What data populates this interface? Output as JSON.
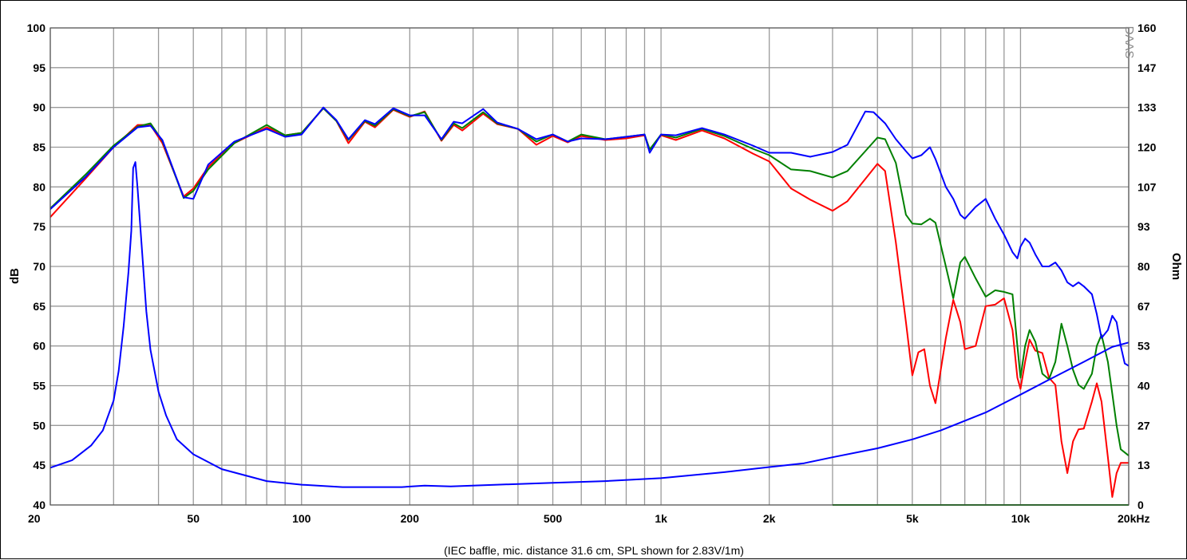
{
  "chart_data": {
    "type": "line",
    "title": "",
    "caption": "(IEC baffle, mic. distance 31.6 cm, SPL shown for 2.83V/1m)",
    "watermark": "DAAS",
    "xscale": "log",
    "xlim": [
      20,
      20000
    ],
    "ylim": [
      40,
      100
    ],
    "y2lim": [
      0,
      160
    ],
    "ylabel": "dB",
    "y2label": "Ohm",
    "grid": true,
    "xticks": [
      {
        "v": 20,
        "label": "20"
      },
      {
        "v": 50,
        "label": "50"
      },
      {
        "v": 100,
        "label": "100"
      },
      {
        "v": 200,
        "label": "200"
      },
      {
        "v": 500,
        "label": "500"
      },
      {
        "v": 1000,
        "label": "1k"
      },
      {
        "v": 2000,
        "label": "2k"
      },
      {
        "v": 5000,
        "label": "5k"
      },
      {
        "v": 10000,
        "label": "10k"
      },
      {
        "v": 20000,
        "label": "20kHz"
      }
    ],
    "yticks": [
      "40",
      "45",
      "50",
      "55",
      "60",
      "65",
      "70",
      "75",
      "80",
      "85",
      "90",
      "95",
      "100"
    ],
    "y2ticks": [
      "0",
      "13",
      "27",
      "40",
      "53",
      "67",
      "80",
      "93",
      "107",
      "120",
      "133",
      "147",
      "160"
    ],
    "series": [
      {
        "id": "spl-red",
        "color": "#ff0000",
        "axis": "left",
        "points": [
          [
            20,
            76.2
          ],
          [
            25,
            81
          ],
          [
            30,
            85
          ],
          [
            35,
            87.8
          ],
          [
            38,
            87.8
          ],
          [
            41,
            85.5
          ],
          [
            47,
            78.8
          ],
          [
            50,
            79.8
          ],
          [
            55,
            82.5
          ],
          [
            65,
            85.5
          ],
          [
            80,
            87.5
          ],
          [
            90,
            86.5
          ],
          [
            100,
            86.8
          ],
          [
            115,
            89.9
          ],
          [
            125,
            88.3
          ],
          [
            135,
            85.5
          ],
          [
            150,
            88.2
          ],
          [
            160,
            87.5
          ],
          [
            180,
            89.7
          ],
          [
            200,
            88.8
          ],
          [
            220,
            89.5
          ],
          [
            245,
            85.8
          ],
          [
            265,
            87.8
          ],
          [
            280,
            87.1
          ],
          [
            320,
            89.2
          ],
          [
            350,
            87.9
          ],
          [
            400,
            87.3
          ],
          [
            450,
            85.3
          ],
          [
            500,
            86.4
          ],
          [
            550,
            85.6
          ],
          [
            600,
            86.4
          ],
          [
            700,
            85.9
          ],
          [
            800,
            86.1
          ],
          [
            900,
            86.5
          ],
          [
            930,
            84.7
          ],
          [
            1000,
            86.5
          ],
          [
            1100,
            85.9
          ],
          [
            1300,
            87.1
          ],
          [
            1500,
            86.1
          ],
          [
            1800,
            84.2
          ],
          [
            2000,
            83.2
          ],
          [
            2300,
            79.8
          ],
          [
            2600,
            78.4
          ],
          [
            3000,
            77
          ],
          [
            3300,
            78.2
          ],
          [
            3700,
            81
          ],
          [
            4000,
            82.9
          ],
          [
            4200,
            82
          ],
          [
            4500,
            73
          ],
          [
            4800,
            63
          ],
          [
            5000,
            56.3
          ],
          [
            5200,
            59.2
          ],
          [
            5400,
            59.6
          ],
          [
            5600,
            55
          ],
          [
            5800,
            52.8
          ],
          [
            6200,
            61
          ],
          [
            6500,
            65.8
          ],
          [
            6800,
            63
          ],
          [
            7000,
            59.6
          ],
          [
            7500,
            60
          ],
          [
            8000,
            65
          ],
          [
            8500,
            65.2
          ],
          [
            9000,
            66
          ],
          [
            9500,
            62
          ],
          [
            9800,
            56
          ],
          [
            10000,
            54.6
          ],
          [
            10300,
            58
          ],
          [
            10600,
            60.8
          ],
          [
            11000,
            59.4
          ],
          [
            11500,
            59.1
          ],
          [
            12000,
            56
          ],
          [
            12500,
            55.1
          ],
          [
            13000,
            48
          ],
          [
            13500,
            44
          ],
          [
            14000,
            48
          ],
          [
            14500,
            49.5
          ],
          [
            15000,
            49.6
          ],
          [
            15800,
            53
          ],
          [
            16300,
            55.3
          ],
          [
            16800,
            53
          ],
          [
            17500,
            46
          ],
          [
            18000,
            41
          ],
          [
            18500,
            44
          ],
          [
            19000,
            45.3
          ],
          [
            20000,
            45.3
          ]
        ]
      },
      {
        "id": "spl-green",
        "color": "#008000",
        "axis": "left",
        "points": [
          [
            20,
            77.3
          ],
          [
            25,
            81.5
          ],
          [
            30,
            85.2
          ],
          [
            35,
            87.6
          ],
          [
            38,
            88
          ],
          [
            41,
            85.8
          ],
          [
            47,
            78.6
          ],
          [
            50,
            79.5
          ],
          [
            55,
            82.2
          ],
          [
            65,
            85.5
          ],
          [
            80,
            87.8
          ],
          [
            90,
            86.5
          ],
          [
            100,
            86.8
          ],
          [
            115,
            89.9
          ],
          [
            125,
            88.3
          ],
          [
            135,
            85.9
          ],
          [
            150,
            88.3
          ],
          [
            160,
            87.7
          ],
          [
            180,
            89.8
          ],
          [
            200,
            88.9
          ],
          [
            220,
            89.4
          ],
          [
            245,
            85.9
          ],
          [
            265,
            88
          ],
          [
            280,
            87.4
          ],
          [
            320,
            89.4
          ],
          [
            350,
            88
          ],
          [
            400,
            87.3
          ],
          [
            450,
            85.7
          ],
          [
            500,
            86.6
          ],
          [
            550,
            85.7
          ],
          [
            600,
            86.6
          ],
          [
            700,
            86
          ],
          [
            800,
            86.3
          ],
          [
            900,
            86.6
          ],
          [
            930,
            84.7
          ],
          [
            1000,
            86.6
          ],
          [
            1100,
            86.2
          ],
          [
            1300,
            87.3
          ],
          [
            1500,
            86.4
          ],
          [
            1800,
            84.8
          ],
          [
            2000,
            84
          ],
          [
            2300,
            82.2
          ],
          [
            2600,
            82
          ],
          [
            3000,
            81.2
          ],
          [
            3300,
            82
          ],
          [
            3700,
            84.5
          ],
          [
            4000,
            86.2
          ],
          [
            4200,
            86
          ],
          [
            4500,
            83
          ],
          [
            4800,
            76.5
          ],
          [
            5000,
            75.4
          ],
          [
            5300,
            75.3
          ],
          [
            5600,
            76
          ],
          [
            5800,
            75.5
          ],
          [
            6200,
            70
          ],
          [
            6500,
            66
          ],
          [
            6800,
            70.5
          ],
          [
            7000,
            71.2
          ],
          [
            7500,
            68.5
          ],
          [
            8000,
            66.2
          ],
          [
            8500,
            67
          ],
          [
            9000,
            66.8
          ],
          [
            9500,
            66.5
          ],
          [
            9800,
            60
          ],
          [
            10000,
            56
          ],
          [
            10300,
            60
          ],
          [
            10600,
            62
          ],
          [
            11000,
            60.5
          ],
          [
            11500,
            56.5
          ],
          [
            12000,
            55.8
          ],
          [
            12500,
            58
          ],
          [
            13000,
            62.8
          ],
          [
            13500,
            60
          ],
          [
            14000,
            57
          ],
          [
            14500,
            55.1
          ],
          [
            15000,
            54.6
          ],
          [
            15800,
            56.5
          ],
          [
            16300,
            60
          ],
          [
            16800,
            61.4
          ],
          [
            17500,
            58
          ],
          [
            18000,
            54
          ],
          [
            18500,
            50
          ],
          [
            19000,
            47
          ],
          [
            20000,
            46.2
          ]
        ]
      },
      {
        "id": "spl-blue",
        "color": "#0000ff",
        "axis": "left",
        "points": [
          [
            20,
            77.2
          ],
          [
            25,
            81.2
          ],
          [
            30,
            85
          ],
          [
            35,
            87.5
          ],
          [
            38,
            87.7
          ],
          [
            41,
            85.9
          ],
          [
            47,
            78.7
          ],
          [
            50,
            78.5
          ],
          [
            55,
            82.8
          ],
          [
            65,
            85.7
          ],
          [
            80,
            87.3
          ],
          [
            90,
            86.3
          ],
          [
            100,
            86.6
          ],
          [
            115,
            90
          ],
          [
            125,
            88.4
          ],
          [
            135,
            86
          ],
          [
            150,
            88.4
          ],
          [
            160,
            87.9
          ],
          [
            180,
            89.9
          ],
          [
            200,
            89
          ],
          [
            220,
            89
          ],
          [
            245,
            86
          ],
          [
            265,
            88.2
          ],
          [
            280,
            88
          ],
          [
            320,
            89.8
          ],
          [
            350,
            88.1
          ],
          [
            400,
            87.3
          ],
          [
            450,
            86
          ],
          [
            500,
            86.6
          ],
          [
            550,
            85.7
          ],
          [
            600,
            86.1
          ],
          [
            700,
            86
          ],
          [
            800,
            86.3
          ],
          [
            900,
            86.6
          ],
          [
            930,
            84.3
          ],
          [
            1000,
            86.6
          ],
          [
            1100,
            86.5
          ],
          [
            1300,
            87.4
          ],
          [
            1500,
            86.6
          ],
          [
            1800,
            85.2
          ],
          [
            2000,
            84.3
          ],
          [
            2300,
            84.3
          ],
          [
            2600,
            83.8
          ],
          [
            3000,
            84.4
          ],
          [
            3300,
            85.3
          ],
          [
            3700,
            89.5
          ],
          [
            3900,
            89.4
          ],
          [
            4200,
            88
          ],
          [
            4500,
            86
          ],
          [
            4800,
            84.5
          ],
          [
            5000,
            83.6
          ],
          [
            5300,
            84
          ],
          [
            5600,
            85
          ],
          [
            5800,
            83.5
          ],
          [
            6200,
            80
          ],
          [
            6500,
            78.5
          ],
          [
            6800,
            76.5
          ],
          [
            7000,
            76
          ],
          [
            7500,
            77.5
          ],
          [
            8000,
            78.5
          ],
          [
            8500,
            76
          ],
          [
            9000,
            74
          ],
          [
            9500,
            71.8
          ],
          [
            9800,
            71
          ],
          [
            10000,
            72.5
          ],
          [
            10300,
            73.5
          ],
          [
            10600,
            73
          ],
          [
            11000,
            71.5
          ],
          [
            11500,
            70
          ],
          [
            12000,
            70
          ],
          [
            12500,
            70.5
          ],
          [
            13000,
            69.5
          ],
          [
            13500,
            68
          ],
          [
            14000,
            67.5
          ],
          [
            14500,
            68
          ],
          [
            15000,
            67.5
          ],
          [
            15800,
            66.5
          ],
          [
            16300,
            64
          ],
          [
            16800,
            61
          ],
          [
            17500,
            62
          ],
          [
            18000,
            63.8
          ],
          [
            18500,
            63
          ],
          [
            19000,
            60
          ],
          [
            19500,
            57.8
          ],
          [
            20000,
            57.5
          ]
        ]
      },
      {
        "id": "impedance-blue",
        "color": "#0000ff",
        "axis": "right",
        "points": [
          [
            20,
            12.5
          ],
          [
            23,
            15
          ],
          [
            26,
            20
          ],
          [
            28,
            25
          ],
          [
            30,
            35
          ],
          [
            31,
            45
          ],
          [
            32,
            60
          ],
          [
            33,
            78
          ],
          [
            33.6,
            92
          ],
          [
            34,
            113
          ],
          [
            34.5,
            115
          ],
          [
            35,
            106
          ],
          [
            36,
            85
          ],
          [
            37,
            65
          ],
          [
            38,
            52
          ],
          [
            40,
            38
          ],
          [
            42,
            30
          ],
          [
            45,
            22
          ],
          [
            50,
            17
          ],
          [
            60,
            12
          ],
          [
            80,
            8
          ],
          [
            100,
            6.8
          ],
          [
            130,
            6
          ],
          [
            160,
            6
          ],
          [
            190,
            6
          ],
          [
            220,
            6.5
          ],
          [
            260,
            6.2
          ],
          [
            350,
            6.8
          ],
          [
            500,
            7.4
          ],
          [
            700,
            8
          ],
          [
            1000,
            9
          ],
          [
            1500,
            11
          ],
          [
            2000,
            12.7
          ],
          [
            2500,
            14
          ],
          [
            3000,
            16
          ],
          [
            4000,
            19
          ],
          [
            5000,
            22
          ],
          [
            6000,
            25
          ],
          [
            8000,
            31
          ],
          [
            10000,
            37
          ],
          [
            12000,
            42
          ],
          [
            15000,
            48
          ],
          [
            18000,
            53
          ],
          [
            20000,
            54.5
          ]
        ]
      },
      {
        "id": "baseline-green",
        "color": "#008000",
        "axis": "left",
        "points": [
          [
            3000,
            40
          ],
          [
            20000,
            40
          ]
        ]
      }
    ]
  }
}
